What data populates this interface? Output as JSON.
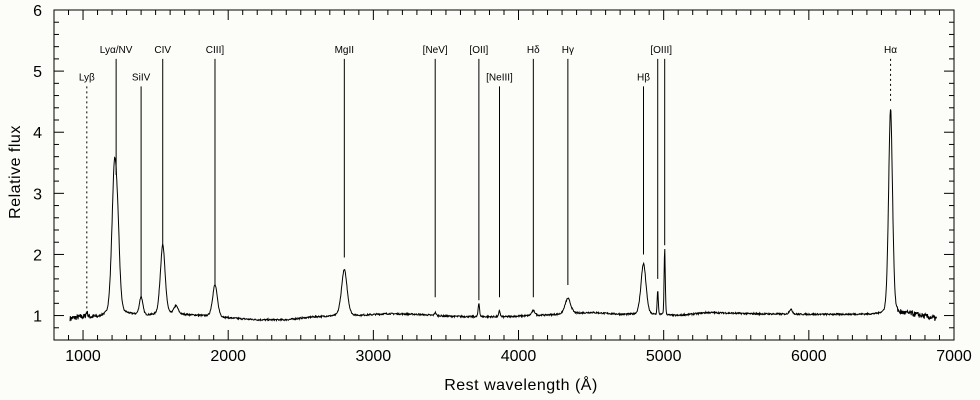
{
  "chart_data": {
    "type": "line",
    "xlabel": "Rest wavelength (Å)",
    "ylabel": "Relative flux",
    "xlim": [
      800,
      7000
    ],
    "ylim": [
      0.6,
      6
    ],
    "x_ticks": [
      1000,
      2000,
      3000,
      4000,
      5000,
      6000,
      7000
    ],
    "x_tick_labels": [
      "1000",
      "2000",
      "3000",
      "4000",
      "5000",
      "6000",
      "7000"
    ],
    "y_ticks": [
      1,
      2,
      3,
      4,
      5,
      6
    ],
    "y_tick_labels": [
      "1",
      "2",
      "3",
      "4",
      "5",
      "6"
    ],
    "grid": false,
    "continuum": [
      [
        910,
        0.95
      ],
      [
        1000,
        0.98
      ],
      [
        1100,
        0.97
      ],
      [
        1150,
        1.0
      ],
      [
        1300,
        1.02
      ],
      [
        1450,
        1.0
      ],
      [
        1650,
        1.02
      ],
      [
        1800,
        1.0
      ],
      [
        2000,
        0.96
      ],
      [
        2200,
        0.93
      ],
      [
        2400,
        0.93
      ],
      [
        2600,
        0.98
      ],
      [
        2900,
        1.0
      ],
      [
        3100,
        1.03
      ],
      [
        3300,
        1.02
      ],
      [
        3500,
        0.99
      ],
      [
        3700,
        0.98
      ],
      [
        3900,
        0.98
      ],
      [
        4100,
        1.0
      ],
      [
        4300,
        1.02
      ],
      [
        4500,
        1.05
      ],
      [
        4700,
        1.02
      ],
      [
        5100,
        1.0
      ],
      [
        5300,
        1.05
      ],
      [
        5600,
        1.03
      ],
      [
        5900,
        1.02
      ],
      [
        6200,
        1.02
      ],
      [
        6450,
        1.02
      ],
      [
        6700,
        1.03
      ],
      [
        6880,
        0.95
      ]
    ],
    "emission_peaks": [
      {
        "wavelength": 1026,
        "flux": 1.05,
        "width": 6
      },
      {
        "wavelength": 1216,
        "flux": 3.3,
        "width": 18
      },
      {
        "wavelength": 1240,
        "flux": 1.9,
        "width": 15
      },
      {
        "wavelength": 1400,
        "flux": 1.3,
        "width": 12
      },
      {
        "wavelength": 1549,
        "flux": 2.15,
        "width": 17
      },
      {
        "wavelength": 1640,
        "flux": 1.15,
        "width": 15
      },
      {
        "wavelength": 1909,
        "flux": 1.5,
        "width": 17
      },
      {
        "wavelength": 2800,
        "flux": 1.75,
        "width": 20
      },
      {
        "wavelength": 3426,
        "flux": 1.05,
        "width": 6
      },
      {
        "wavelength": 3727,
        "flux": 1.2,
        "width": 5
      },
      {
        "wavelength": 3869,
        "flux": 1.08,
        "width": 5
      },
      {
        "wavelength": 4102,
        "flux": 1.08,
        "width": 12
      },
      {
        "wavelength": 4340,
        "flux": 1.28,
        "width": 20
      },
      {
        "wavelength": 4861,
        "flux": 1.85,
        "width": 18
      },
      {
        "wavelength": 4959,
        "flux": 1.4,
        "width": 4
      },
      {
        "wavelength": 5007,
        "flux": 2.1,
        "width": 4
      },
      {
        "wavelength": 5876,
        "flux": 1.1,
        "width": 12
      },
      {
        "wavelength": 6563,
        "flux": 4.38,
        "width": 14
      }
    ],
    "line_markers": [
      {
        "label": "Lyβ",
        "wavelength": 1026,
        "y_top": 4.75,
        "y_bottom": 1.03,
        "dashed": true
      },
      {
        "label": "Lyα/NV",
        "wavelength": 1228,
        "y_top": 5.2,
        "y_bottom": 3.3,
        "dashed": false
      },
      {
        "label": "SiIV",
        "wavelength": 1400,
        "y_top": 4.75,
        "y_bottom": 1.3,
        "dashed": false
      },
      {
        "label": "CIV",
        "wavelength": 1549,
        "y_top": 5.2,
        "y_bottom": 2.15,
        "dashed": false
      },
      {
        "label": "CIII]",
        "wavelength": 1909,
        "y_top": 5.2,
        "y_bottom": 1.5,
        "dashed": false
      },
      {
        "label": "MgII",
        "wavelength": 2800,
        "y_top": 5.2,
        "y_bottom": 1.95,
        "dashed": false
      },
      {
        "label": "[NeV]",
        "wavelength": 3426,
        "y_top": 5.2,
        "y_bottom": 1.3,
        "dashed": false
      },
      {
        "label": "[OII]",
        "wavelength": 3727,
        "y_top": 5.2,
        "y_bottom": 1.25,
        "dashed": false
      },
      {
        "label": "[NeIII]",
        "wavelength": 3869,
        "y_top": 4.75,
        "y_bottom": 1.3,
        "dashed": false
      },
      {
        "label": "Hδ",
        "wavelength": 4102,
        "y_top": 5.2,
        "y_bottom": 1.3,
        "dashed": false
      },
      {
        "label": "Hγ",
        "wavelength": 4340,
        "y_top": 5.2,
        "y_bottom": 1.5,
        "dashed": false
      },
      {
        "label": "Hβ",
        "wavelength": 4861,
        "y_top": 4.75,
        "y_bottom": 2.0,
        "dashed": false
      },
      {
        "label": "[OIII]",
        "wavelength": 4959,
        "y_top": 5.2,
        "y_bottom": 1.6,
        "dashed": false
      },
      {
        "label": "",
        "wavelength": 5007,
        "y_top": 5.2,
        "y_bottom": 2.15,
        "dashed": false
      },
      {
        "label": "Hα",
        "wavelength": 6563,
        "y_top": 5.2,
        "y_bottom": 4.5,
        "dashed": true
      }
    ]
  }
}
